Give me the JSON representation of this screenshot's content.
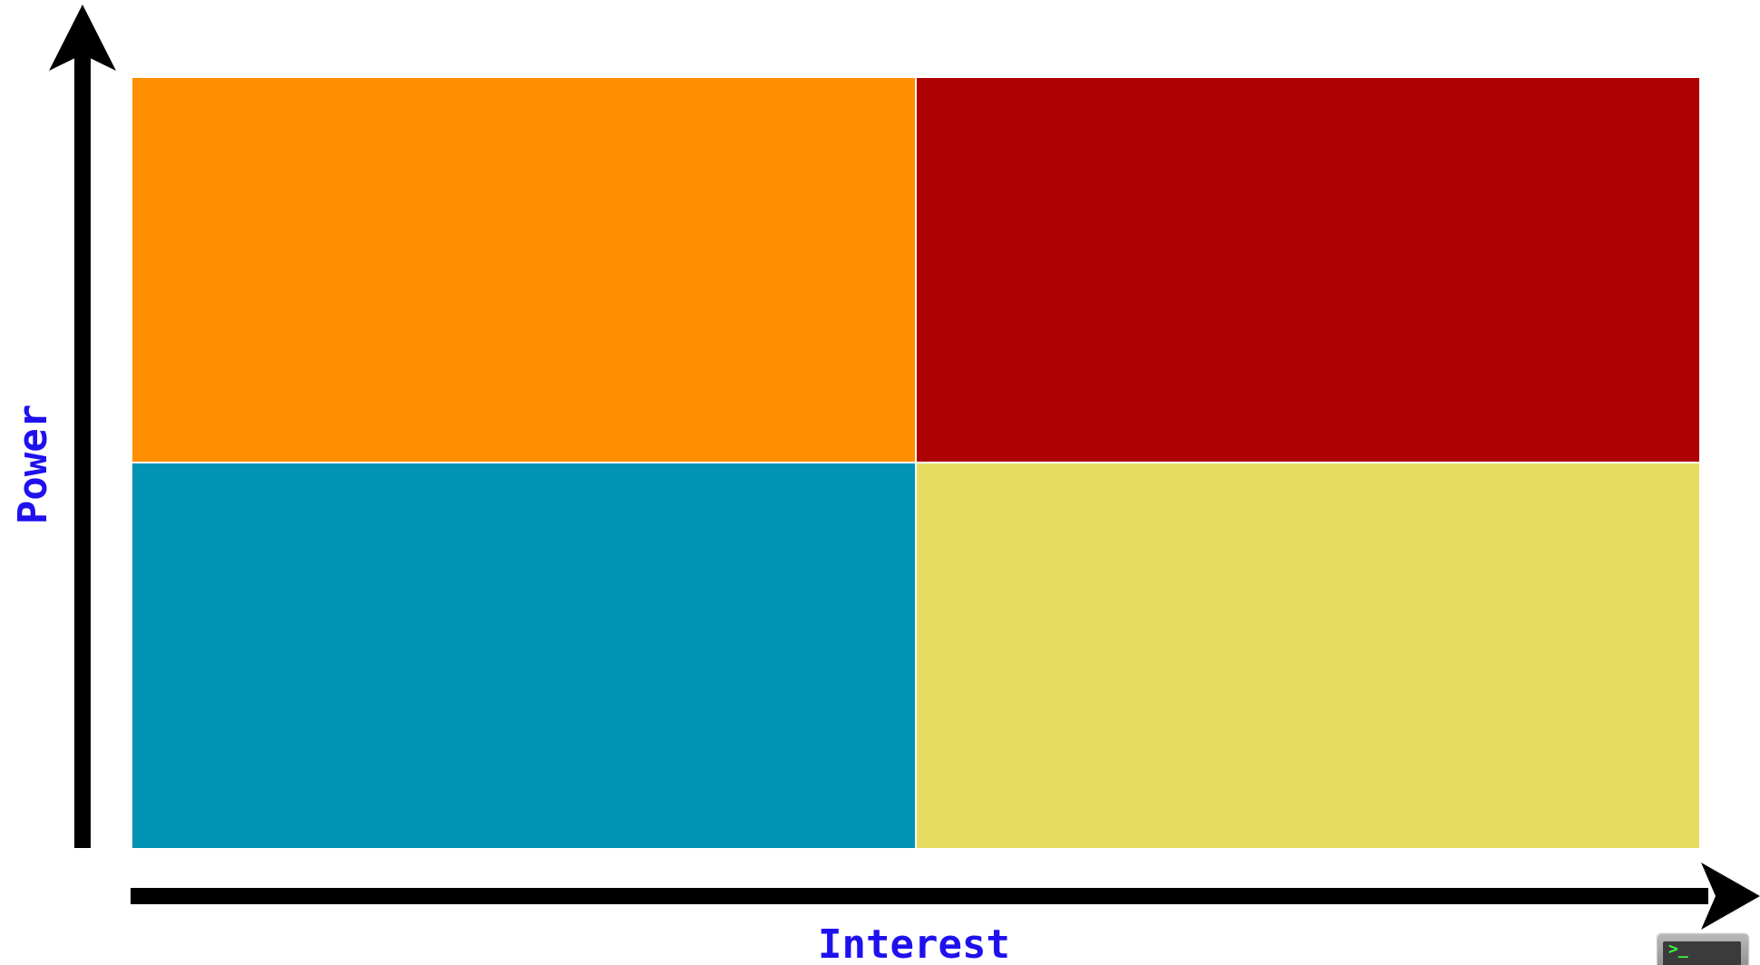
{
  "axes": {
    "y_label": "Power",
    "x_label": "Interest"
  },
  "quadrants": {
    "top_left": {
      "color": "#ff8f00"
    },
    "top_right": {
      "color": "#ad0000"
    },
    "bottom_left": {
      "color": "#0093b5"
    },
    "bottom_right": {
      "color": "#e6dc60"
    }
  },
  "colors": {
    "axis_line": "#000000",
    "axis_label": "#1f10ee",
    "divider": "#ffffff"
  },
  "icons": {
    "corner": "terminal-icon",
    "terminal_prompt": ">_"
  }
}
